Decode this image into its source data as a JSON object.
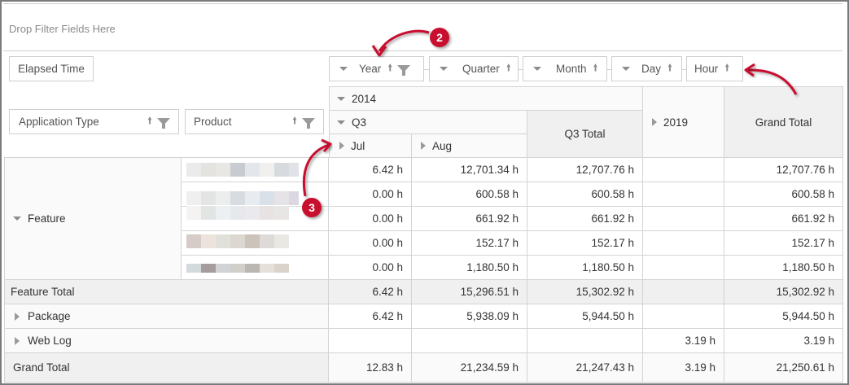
{
  "filter_area": {
    "placeholder": "Drop Filter Fields Here"
  },
  "data_fields": [
    {
      "label": "Elapsed Time"
    }
  ],
  "column_fields": [
    {
      "label": "Year",
      "sort": "ascending",
      "filter": true,
      "expand": true
    },
    {
      "label": "Quarter",
      "sort": "ascending",
      "filter": false,
      "expand": true
    },
    {
      "label": "Month",
      "sort": "ascending",
      "filter": false,
      "expand": true
    },
    {
      "label": "Day",
      "sort": "ascending",
      "filter": false,
      "expand": true
    },
    {
      "label": "Hour",
      "sort": "ascending",
      "filter": false,
      "expand": false
    }
  ],
  "row_fields": [
    {
      "label": "Application Type",
      "sort": "ascending",
      "filter": true
    },
    {
      "label": "Product",
      "sort": "ascending",
      "filter": true
    }
  ],
  "column_headers": {
    "year_2014": "2014",
    "quarter_q3": "Q3",
    "month_jul": "Jul",
    "month_aug": "Aug",
    "q3_total": "Q3 Total",
    "year_2019": "2019",
    "grand_total": "Grand Total"
  },
  "rows": {
    "feature": {
      "label": "Feature",
      "products": [
        {
          "jul": "6.42 h",
          "aug": "12,701.34 h",
          "q3_total": "12,707.76 h",
          "y2019": "",
          "grand_total": "12,707.76 h"
        },
        {
          "jul": "0.00 h",
          "aug": "600.58 h",
          "q3_total": "600.58 h",
          "y2019": "",
          "grand_total": "600.58 h"
        },
        {
          "jul": "0.00 h",
          "aug": "661.92 h",
          "q3_total": "661.92 h",
          "y2019": "",
          "grand_total": "661.92 h"
        },
        {
          "jul": "0.00 h",
          "aug": "152.17 h",
          "q3_total": "152.17 h",
          "y2019": "",
          "grand_total": "152.17 h"
        },
        {
          "jul": "0.00 h",
          "aug": "1,180.50 h",
          "q3_total": "1,180.50 h",
          "y2019": "",
          "grand_total": "1,180.50 h"
        }
      ]
    },
    "feature_total": {
      "label": "Feature Total",
      "jul": "6.42 h",
      "aug": "15,296.51 h",
      "q3_total": "15,302.92 h",
      "y2019": "",
      "grand_total": "15,302.92 h"
    },
    "package": {
      "label": "Package",
      "jul": "6.42 h",
      "aug": "5,938.09 h",
      "q3_total": "5,944.50 h",
      "y2019": "",
      "grand_total": "5,944.50 h"
    },
    "web_log": {
      "label": "Web Log",
      "jul": "",
      "aug": "",
      "q3_total": "",
      "y2019": "3.19 h",
      "grand_total": "3.19 h"
    },
    "grand_total": {
      "label": "Grand Total",
      "jul": "12.83 h",
      "aug": "21,234.59 h",
      "q3_total": "21,247.43 h",
      "y2019": "3.19 h",
      "grand_total": "21,250.61 h"
    }
  },
  "annotations": [
    {
      "number": "2"
    },
    {
      "number": "3"
    }
  ],
  "colors": {
    "annotation_red": "#c8102e",
    "total_bg": "#f0f0f0",
    "header_bg": "#fafafa",
    "grid_line": "#d4d4d4"
  }
}
